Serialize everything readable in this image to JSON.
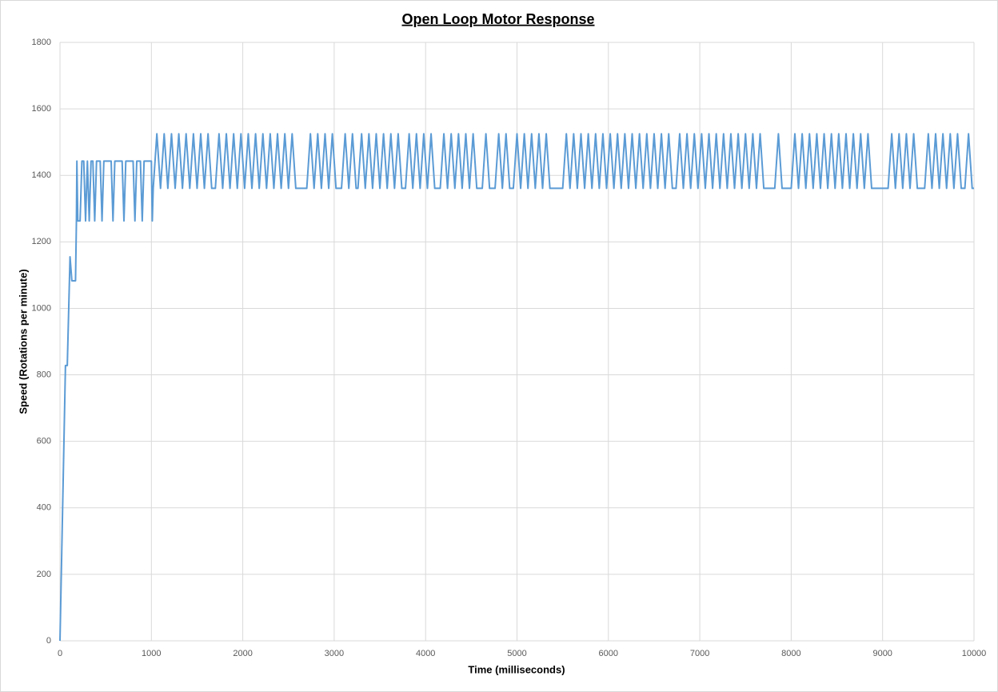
{
  "chart_data": {
    "type": "line",
    "title": "Open Loop Motor Response",
    "x_label": "Time (milliseconds)",
    "y_label": "Speed (Rotations per minute)",
    "xlim": [
      0,
      10000
    ],
    "xticks": [
      0,
      1000,
      2000,
      3000,
      4000,
      5000,
      6000,
      7000,
      8000,
      9000,
      10000
    ],
    "ylim": [
      0,
      1800
    ],
    "yticks": [
      0,
      200,
      400,
      600,
      800,
      1000,
      1200,
      1400,
      1600,
      1800
    ],
    "grid": true,
    "series": [
      {
        "color": "#5b9bd5",
        "x": [
          0,
          60,
          80,
          110,
          130,
          170,
          180,
          185,
          195,
          220,
          240,
          260,
          280,
          300,
          320,
          340,
          360,
          380,
          400,
          440,
          460,
          480,
          560,
          580,
          600,
          680,
          700,
          720,
          800,
          820,
          840,
          880,
          900,
          920,
          1000,
          1010,
          1020,
          1060,
          1100,
          1140,
          1180,
          1220,
          1260,
          1300,
          1340,
          1380,
          1420,
          1460,
          1500,
          1540,
          1580,
          1620,
          1660,
          1700,
          1740,
          1780,
          1820,
          1860,
          1900,
          1940,
          1980,
          2020,
          2060,
          2100,
          2140,
          2180,
          2220,
          2260,
          2300,
          2340,
          2380,
          2420,
          2460,
          2500,
          2540,
          2580,
          2700,
          2740,
          2780,
          2820,
          2860,
          2900,
          2940,
          2980,
          3020,
          3080,
          3120,
          3160,
          3200,
          3240,
          3260,
          3300,
          3340,
          3380,
          3420,
          3460,
          3500,
          3540,
          3580,
          3620,
          3660,
          3700,
          3740,
          3780,
          3820,
          3860,
          3900,
          3940,
          3980,
          4020,
          4060,
          4100,
          4160,
          4200,
          4240,
          4280,
          4320,
          4360,
          4400,
          4440,
          4480,
          4520,
          4560,
          4620,
          4660,
          4700,
          4760,
          4800,
          4840,
          4880,
          4920,
          4960,
          5000,
          5040,
          5080,
          5120,
          5160,
          5200,
          5240,
          5280,
          5320,
          5360,
          5500,
          5540,
          5580,
          5620,
          5660,
          5700,
          5740,
          5780,
          5820,
          5860,
          5900,
          5940,
          5980,
          6020,
          6060,
          6100,
          6140,
          6180,
          6220,
          6260,
          6300,
          6340,
          6380,
          6420,
          6460,
          6500,
          6540,
          6580,
          6620,
          6660,
          6700,
          6740,
          6780,
          6820,
          6860,
          6900,
          6940,
          6980,
          7020,
          7060,
          7100,
          7140,
          7180,
          7220,
          7260,
          7300,
          7340,
          7380,
          7420,
          7460,
          7500,
          7540,
          7580,
          7620,
          7660,
          7700,
          7820,
          7860,
          7900,
          8000,
          8040,
          8080,
          8120,
          8160,
          8200,
          8240,
          8280,
          8320,
          8360,
          8400,
          8440,
          8480,
          8520,
          8560,
          8600,
          8640,
          8680,
          8720,
          8760,
          8800,
          8840,
          8880,
          9060,
          9100,
          9140,
          9180,
          9220,
          9260,
          9300,
          9340,
          9380,
          9460,
          9500,
          9540,
          9580,
          9620,
          9660,
          9700,
          9740,
          9780,
          9820,
          9860,
          9900,
          9940,
          9980,
          10000
        ],
        "values": [
          0,
          828,
          828,
          1155,
          1083,
          1083,
          1263,
          1443,
          1263,
          1263,
          1443,
          1443,
          1263,
          1443,
          1263,
          1443,
          1443,
          1263,
          1443,
          1443,
          1263,
          1443,
          1443,
          1263,
          1443,
          1443,
          1263,
          1443,
          1443,
          1263,
          1443,
          1443,
          1263,
          1443,
          1443,
          1263,
          1361,
          1525,
          1361,
          1525,
          1361,
          1525,
          1361,
          1525,
          1361,
          1525,
          1361,
          1525,
          1361,
          1525,
          1361,
          1525,
          1361,
          1361,
          1525,
          1361,
          1525,
          1361,
          1525,
          1361,
          1525,
          1361,
          1525,
          1361,
          1525,
          1361,
          1525,
          1361,
          1525,
          1361,
          1525,
          1361,
          1525,
          1361,
          1525,
          1361,
          1361,
          1525,
          1361,
          1525,
          1361,
          1525,
          1361,
          1525,
          1361,
          1361,
          1525,
          1361,
          1525,
          1361,
          1361,
          1525,
          1361,
          1525,
          1361,
          1525,
          1361,
          1525,
          1361,
          1525,
          1361,
          1525,
          1361,
          1361,
          1525,
          1361,
          1525,
          1361,
          1525,
          1361,
          1525,
          1361,
          1361,
          1525,
          1361,
          1525,
          1361,
          1525,
          1361,
          1525,
          1361,
          1525,
          1361,
          1361,
          1525,
          1361,
          1361,
          1525,
          1361,
          1525,
          1361,
          1361,
          1525,
          1361,
          1525,
          1361,
          1525,
          1361,
          1525,
          1361,
          1525,
          1361,
          1361,
          1525,
          1361,
          1525,
          1361,
          1525,
          1361,
          1525,
          1361,
          1525,
          1361,
          1525,
          1361,
          1525,
          1361,
          1525,
          1361,
          1525,
          1361,
          1525,
          1361,
          1525,
          1361,
          1525,
          1361,
          1525,
          1361,
          1525,
          1361,
          1525,
          1361,
          1361,
          1525,
          1361,
          1525,
          1361,
          1525,
          1361,
          1525,
          1361,
          1525,
          1361,
          1525,
          1361,
          1525,
          1361,
          1525,
          1361,
          1525,
          1361,
          1525,
          1361,
          1525,
          1361,
          1525,
          1361,
          1361,
          1525,
          1361,
          1361,
          1525,
          1361,
          1525,
          1361,
          1525,
          1361,
          1525,
          1361,
          1525,
          1361,
          1525,
          1361,
          1525,
          1361,
          1525,
          1361,
          1525,
          1361,
          1525,
          1361,
          1525,
          1361,
          1361,
          1525,
          1361,
          1525,
          1361,
          1525,
          1361,
          1525,
          1361,
          1361,
          1525,
          1361,
          1525,
          1361,
          1525,
          1361,
          1525,
          1361,
          1525,
          1361,
          1361,
          1525,
          1361,
          1361
        ]
      }
    ]
  }
}
